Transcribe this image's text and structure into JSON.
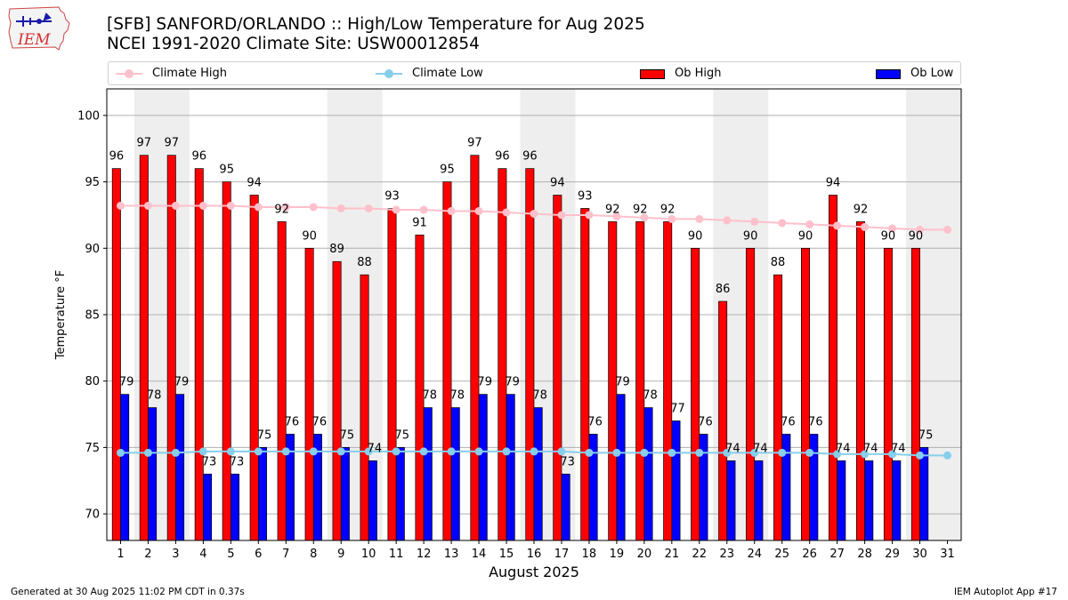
{
  "header": {
    "logo_text": "IEM",
    "title_line1": "[SFB] SANFORD/ORLANDO :: High/Low Temperature for Aug 2025",
    "title_line2": "NCEI 1991-2020 Climate Site: USW00012854"
  },
  "legend": {
    "climate_high": "Climate High",
    "climate_low": "Climate Low",
    "ob_high": "Ob High",
    "ob_low": "Ob Low"
  },
  "colors": {
    "ob_high": "#ff0000",
    "ob_low": "#0000ff",
    "climate_high": "#ffc0cb",
    "climate_low": "#87ceeb",
    "weekend_shade": "#eeeeee",
    "grid": "#b0b0b0"
  },
  "chart_data": {
    "type": "bar",
    "title": "[SFB] SANFORD/ORLANDO :: High/Low Temperature for Aug 2025",
    "subtitle": "NCEI 1991-2020 Climate Site: USW00012854",
    "xlabel": "August 2025",
    "ylabel": "Temperature $^\\circ$F",
    "ylim": [
      68,
      102
    ],
    "yticks": [
      70,
      75,
      80,
      85,
      90,
      95,
      100
    ],
    "grid": true,
    "legend_placement": "top, above plot",
    "categories": [
      "1",
      "2",
      "3",
      "4",
      "5",
      "6",
      "7",
      "8",
      "9",
      "10",
      "11",
      "12",
      "13",
      "14",
      "15",
      "16",
      "17",
      "18",
      "19",
      "20",
      "21",
      "22",
      "23",
      "24",
      "25",
      "26",
      "27",
      "28",
      "29",
      "30",
      "31"
    ],
    "shaded_weekend_days": [
      [
        2,
        3
      ],
      [
        9,
        10
      ],
      [
        16,
        17
      ],
      [
        23,
        24
      ],
      [
        30,
        31
      ]
    ],
    "series": [
      {
        "name": "Ob High",
        "kind": "bar",
        "values": [
          96,
          97,
          97,
          96,
          95,
          94,
          92,
          90,
          89,
          88,
          93,
          91,
          95,
          97,
          96,
          96,
          94,
          93,
          92,
          92,
          92,
          90,
          86,
          90,
          88,
          90,
          94,
          92,
          90,
          90,
          null
        ]
      },
      {
        "name": "Ob Low",
        "kind": "bar",
        "values": [
          79,
          78,
          79,
          73,
          73,
          75,
          76,
          76,
          75,
          74,
          75,
          78,
          78,
          79,
          79,
          78,
          73,
          76,
          79,
          78,
          77,
          76,
          74,
          74,
          76,
          76,
          74,
          74,
          74,
          75,
          null
        ]
      },
      {
        "name": "Climate High",
        "kind": "line",
        "values": [
          93.2,
          93.2,
          93.2,
          93.2,
          93.2,
          93.1,
          93.1,
          93.1,
          93.0,
          93.0,
          92.9,
          92.9,
          92.8,
          92.8,
          92.7,
          92.6,
          92.5,
          92.5,
          92.4,
          92.3,
          92.2,
          92.2,
          92.1,
          92.0,
          91.9,
          91.8,
          91.7,
          91.6,
          91.5,
          91.4,
          91.4
        ]
      },
      {
        "name": "Climate Low",
        "kind": "line",
        "values": [
          74.6,
          74.6,
          74.6,
          74.7,
          74.7,
          74.7,
          74.7,
          74.7,
          74.7,
          74.7,
          74.7,
          74.7,
          74.7,
          74.7,
          74.7,
          74.7,
          74.7,
          74.6,
          74.6,
          74.6,
          74.6,
          74.6,
          74.6,
          74.6,
          74.6,
          74.6,
          74.5,
          74.5,
          74.5,
          74.4,
          74.4
        ]
      }
    ]
  },
  "footer": {
    "generated": "Generated at 30 Aug 2025 11:02 PM CDT in 0.37s",
    "app": "IEM Autoplot App #17"
  }
}
